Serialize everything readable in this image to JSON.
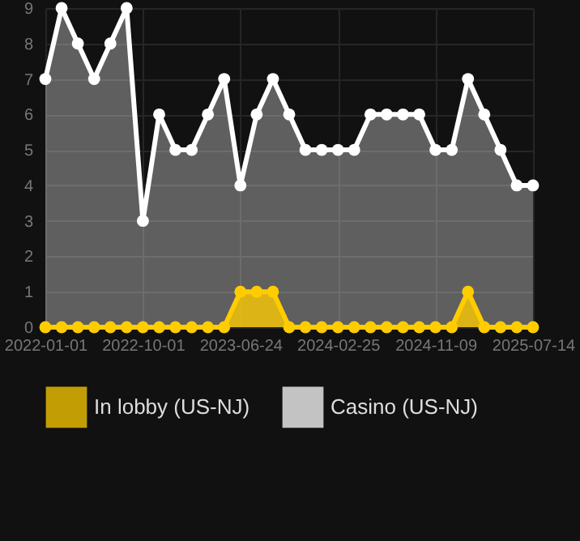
{
  "chart_data": {
    "type": "area",
    "categories": [
      "2022-01-01",
      null,
      null,
      null,
      null,
      null,
      "2022-10-01",
      null,
      null,
      null,
      null,
      null,
      "2023-06-24",
      null,
      null,
      null,
      null,
      null,
      "2024-02-25",
      null,
      null,
      null,
      null,
      null,
      "2024-11-09",
      null,
      null,
      null,
      null,
      null,
      "2025-07-14"
    ],
    "series": [
      {
        "name": "In lobby (US-NJ)",
        "color": "#ffcc00",
        "values": [
          0,
          0,
          0,
          0,
          0,
          0,
          0,
          0,
          0,
          0,
          0,
          0,
          1,
          1,
          1,
          0,
          0,
          0,
          0,
          0,
          0,
          0,
          0,
          0,
          0,
          0,
          1,
          0,
          0,
          0,
          0
        ]
      },
      {
        "name": "Casino (US-NJ)",
        "color": "#ffffff",
        "values": [
          7,
          9,
          8,
          7,
          8,
          9,
          3,
          6,
          5,
          5,
          6,
          7,
          4,
          6,
          7,
          6,
          5,
          5,
          5,
          5,
          6,
          6,
          6,
          6,
          5,
          5,
          7,
          6,
          5,
          4,
          4
        ]
      }
    ],
    "ylim": [
      0,
      9
    ],
    "yticks": [
      0,
      1,
      2,
      3,
      4,
      5,
      6,
      7,
      8,
      9
    ],
    "grid": true,
    "legend": "bottom",
    "marker": "circle"
  }
}
